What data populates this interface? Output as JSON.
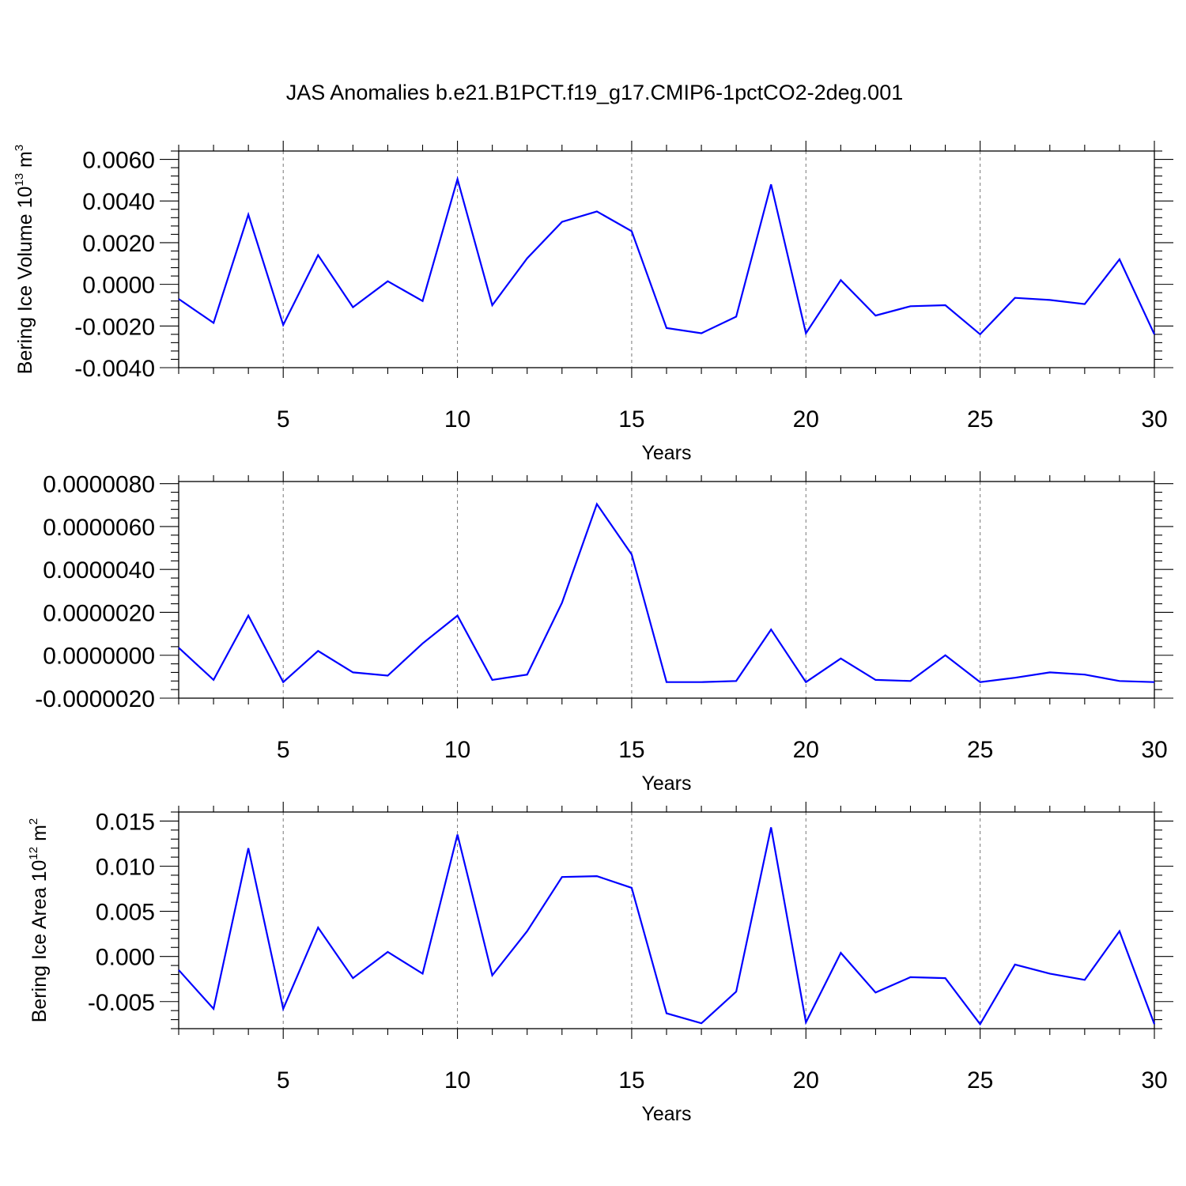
{
  "figure": {
    "title": "JAS Anomalies b.e21.B1PCT.f19_g17.CMIP6-1pctCO2-2deg.001"
  },
  "chart_data": [
    {
      "type": "line",
      "title": "",
      "xlabel": "Years",
      "ylabel": "Bering Ice Volume 10",
      "ylabel_exp": "13",
      "ylabel_unit": " m",
      "ylabel_unit_exp": "3",
      "xlim": [
        2,
        30
      ],
      "ylim": [
        -0.004,
        0.0064
      ],
      "xticks": [
        5,
        10,
        15,
        20,
        25,
        30
      ],
      "yticks": [
        -0.004,
        -0.002,
        0.0,
        0.002,
        0.004,
        0.006
      ],
      "ytick_labels": [
        "-0.0040",
        "-0.0020",
        "0.0000",
        "0.0020",
        "0.0040",
        "0.0060"
      ],
      "grid": "vertical dashed at major x ticks",
      "color": "#0000ff",
      "x": [
        2,
        3,
        4,
        5,
        6,
        7,
        8,
        9,
        10,
        11,
        12,
        13,
        14,
        15,
        16,
        17,
        18,
        19,
        20,
        21,
        22,
        23,
        24,
        25,
        26,
        27,
        28,
        29,
        30
      ],
      "values": [
        -0.0007,
        -0.00185,
        0.00335,
        -0.00195,
        0.0014,
        -0.0011,
        0.00015,
        -0.0008,
        0.00505,
        -0.001,
        0.00125,
        0.003,
        0.0035,
        0.00255,
        -0.0021,
        -0.00235,
        -0.00155,
        0.0048,
        -0.00235,
        0.0002,
        -0.0015,
        -0.00105,
        -0.001,
        -0.0024,
        -0.00065,
        -0.00075,
        -0.00095,
        0.0012,
        -0.0024
      ]
    },
    {
      "type": "line",
      "title": "",
      "xlabel": "Years",
      "ylabel": "",
      "xlim": [
        2,
        30
      ],
      "ylim": [
        -2e-06,
        8.1e-06
      ],
      "xticks": [
        5,
        10,
        15,
        20,
        25,
        30
      ],
      "yticks": [
        -2e-06,
        0.0,
        2e-06,
        4e-06,
        6e-06,
        8e-06
      ],
      "ytick_labels": [
        "-0.0000020",
        "0.0000000",
        "0.0000020",
        "0.0000040",
        "0.0000060",
        "0.0000080"
      ],
      "grid": "vertical dashed at major x ticks",
      "color": "#0000ff",
      "x": [
        2,
        3,
        4,
        5,
        6,
        7,
        8,
        9,
        10,
        11,
        12,
        13,
        14,
        15,
        16,
        17,
        18,
        19,
        20,
        21,
        22,
        23,
        24,
        25,
        26,
        27,
        28,
        29,
        30
      ],
      "values": [
        3.5e-07,
        -1.15e-06,
        1.85e-06,
        -1.25e-06,
        2e-07,
        -8e-07,
        -9.5e-07,
        5.5e-07,
        1.85e-06,
        -1.15e-06,
        -9e-07,
        2.45e-06,
        7.05e-06,
        4.7e-06,
        -1.25e-06,
        -1.25e-06,
        -1.2e-06,
        1.2e-06,
        -1.25e-06,
        -1.5e-07,
        -1.15e-06,
        -1.2e-06,
        0.0,
        -1.25e-06,
        -1.05e-06,
        -8e-07,
        -9e-07,
        -1.2e-06,
        -1.25e-06
      ]
    },
    {
      "type": "line",
      "title": "",
      "xlabel": "Years",
      "ylabel": "Bering Ice Area 10",
      "ylabel_exp": "12",
      "ylabel_unit": " m",
      "ylabel_unit_exp": "2",
      "xlim": [
        2,
        30
      ],
      "ylim": [
        -0.008,
        0.016
      ],
      "xticks": [
        5,
        10,
        15,
        20,
        25,
        30
      ],
      "yticks": [
        -0.005,
        0.0,
        0.005,
        0.01,
        0.015
      ],
      "ytick_labels": [
        "-0.005",
        "0.000",
        "0.005",
        "0.010",
        "0.015"
      ],
      "grid": "vertical dashed at major x ticks",
      "color": "#0000ff",
      "x": [
        2,
        3,
        4,
        5,
        6,
        7,
        8,
        9,
        10,
        11,
        12,
        13,
        14,
        15,
        16,
        17,
        18,
        19,
        20,
        21,
        22,
        23,
        24,
        25,
        26,
        27,
        28,
        29,
        30
      ],
      "values": [
        -0.0015,
        -0.0058,
        0.012,
        -0.0058,
        0.0032,
        -0.0024,
        0.0005,
        -0.0019,
        0.0135,
        -0.0021,
        0.0028,
        0.0088,
        0.0089,
        0.0076,
        -0.0063,
        -0.0074,
        -0.0039,
        0.0143,
        -0.0073,
        0.0004,
        -0.004,
        -0.0023,
        -0.0024,
        -0.0075,
        -0.0009,
        -0.0019,
        -0.0026,
        0.0028,
        -0.0075
      ]
    }
  ]
}
